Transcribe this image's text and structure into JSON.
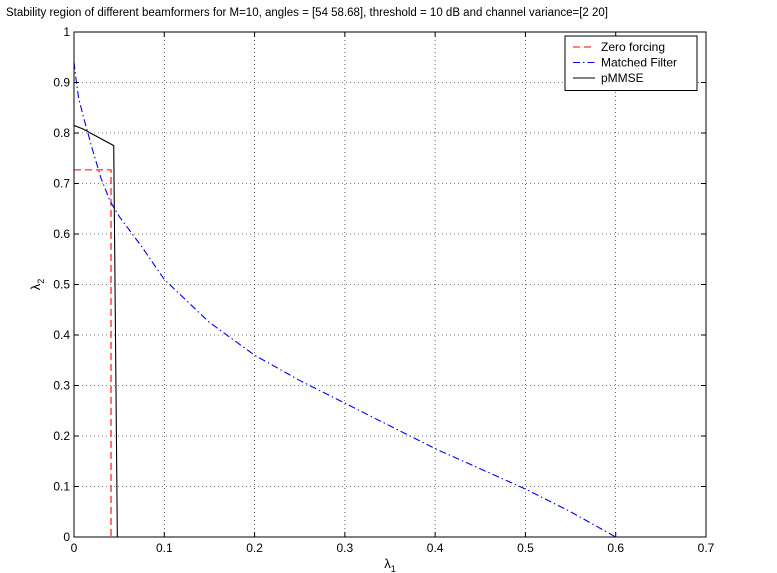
{
  "chart_data": {
    "type": "line",
    "title": "Stability region of different beamformers for M=10, angles = [54        58.68], threshold = 10 dB and channel variance=[2  20]",
    "xlabel": "λ1",
    "ylabel": "λ2",
    "xlim": [
      0,
      0.7
    ],
    "ylim": [
      0,
      1
    ],
    "xticks": [
      0,
      0.1,
      0.2,
      0.3,
      0.4,
      0.5,
      0.6,
      0.7
    ],
    "xtick_labels": [
      "0",
      "0.1",
      "0.2",
      "0.3",
      "0.4",
      "0.5",
      "0.6",
      "0.7"
    ],
    "yticks": [
      0,
      0.1,
      0.2,
      0.3,
      0.4,
      0.5,
      0.6,
      0.7,
      0.8,
      0.9,
      1
    ],
    "ytick_labels": [
      "0",
      "0.1",
      "0.2",
      "0.3",
      "0.4",
      "0.5",
      "0.6",
      "0.7",
      "0.8",
      "0.9",
      "1"
    ],
    "grid": true,
    "legend_position": "top-right",
    "series": [
      {
        "name": "Zero forcing",
        "color": "#ff0000",
        "dash": "dashed",
        "points": [
          [
            0,
            0.727
          ],
          [
            0.041,
            0.727
          ],
          [
            0.041,
            0
          ]
        ]
      },
      {
        "name": "Matched Filter",
        "color": "#0000ff",
        "dash": "dashdot",
        "points": [
          [
            0,
            0.94
          ],
          [
            0.002,
            0.91
          ],
          [
            0.005,
            0.87
          ],
          [
            0.01,
            0.835
          ],
          [
            0.02,
            0.77
          ],
          [
            0.03,
            0.71
          ],
          [
            0.04,
            0.665
          ],
          [
            0.05,
            0.635
          ],
          [
            0.075,
            0.575
          ],
          [
            0.1,
            0.51
          ],
          [
            0.15,
            0.425
          ],
          [
            0.2,
            0.36
          ],
          [
            0.25,
            0.31
          ],
          [
            0.3,
            0.265
          ],
          [
            0.35,
            0.22
          ],
          [
            0.4,
            0.175
          ],
          [
            0.45,
            0.135
          ],
          [
            0.5,
            0.095
          ],
          [
            0.55,
            0.05
          ],
          [
            0.6,
            0.0
          ]
        ]
      },
      {
        "name": "pMMSE",
        "color": "#000000",
        "dash": "solid",
        "points": [
          [
            0,
            0.815
          ],
          [
            0.01,
            0.808
          ],
          [
            0.044,
            0.775
          ],
          [
            0.048,
            0
          ]
        ]
      }
    ]
  }
}
